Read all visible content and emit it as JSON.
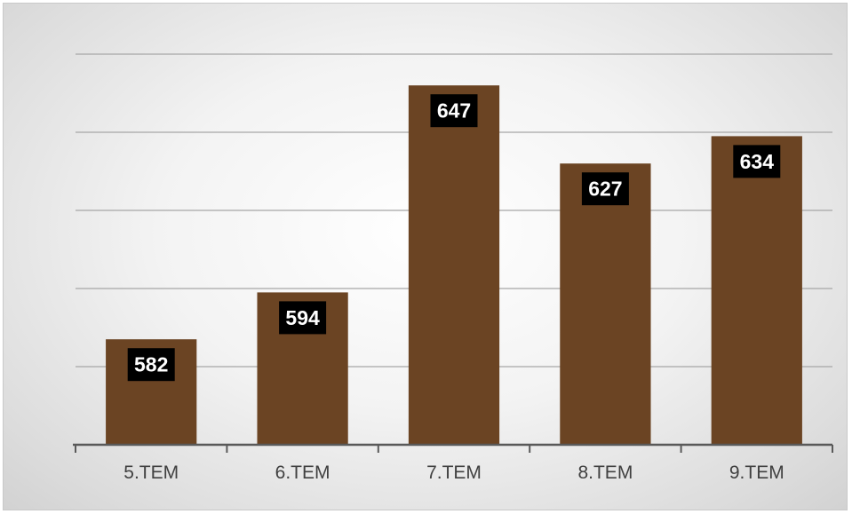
{
  "chart_data": {
    "type": "bar",
    "categories": [
      "5.TEM",
      "6.TEM",
      "7.TEM",
      "8.TEM",
      "9.TEM"
    ],
    "values": [
      582,
      594,
      647,
      627,
      634
    ],
    "data_labels": [
      "582",
      "594",
      "647",
      "627",
      "634"
    ],
    "title": "",
    "xlabel": "",
    "ylabel": "",
    "ylim": [
      555,
      665
    ],
    "y_gridlines": [
      575,
      595,
      615,
      635,
      655
    ],
    "grid": true,
    "legend": "none",
    "y_tick_labels_visible": false,
    "colors": {
      "bar": "#6b4423",
      "data_label_bg": "#000000",
      "data_label_text": "#ffffff",
      "gridline": "#a6a6a6",
      "axis": "#595959"
    }
  }
}
